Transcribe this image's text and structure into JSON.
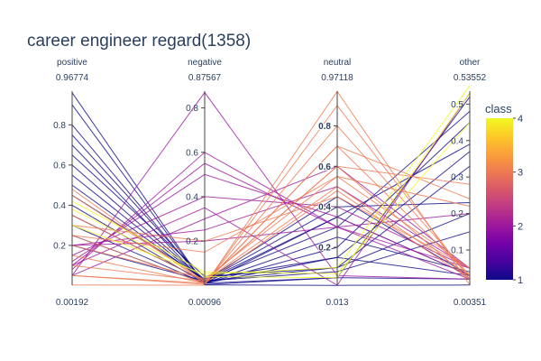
{
  "chart_data": {
    "type": "parallel_coordinates",
    "title": "career engineer regard(1358)",
    "dimensions": [
      {
        "name": "positive",
        "max": 0.96774,
        "min": 0.00192,
        "ticks": [
          0.2,
          0.4,
          0.6,
          0.8
        ]
      },
      {
        "name": "negative",
        "max": 0.87567,
        "min": 0.00096,
        "ticks": [
          0.2,
          0.4,
          0.6,
          0.8
        ]
      },
      {
        "name": "neutral",
        "max": 0.97118,
        "min": 0.013,
        "ticks": [
          0.2,
          0.4,
          0.6,
          0.8
        ]
      },
      {
        "name": "other",
        "max": 0.53552,
        "min": 0.00351,
        "ticks": [
          0.1,
          0.2,
          0.3,
          0.4,
          0.5
        ]
      }
    ],
    "colorbar": {
      "title": "class",
      "min": 1,
      "max": 4,
      "ticks": [
        1,
        2,
        3,
        4
      ]
    },
    "colorscale": [
      "#0d0887",
      "#46039f",
      "#7201a8",
      "#9c179e",
      "#bd3786",
      "#d8576b",
      "#ed7953",
      "#fb9f3a",
      "#fdca26",
      "#f0f921"
    ],
    "series_samples": [
      {
        "class": 1,
        "values": [
          0.96,
          0.002,
          0.012,
          0.004
        ]
      },
      {
        "class": 1,
        "values": [
          0.9,
          0.004,
          0.05,
          0.02
        ]
      },
      {
        "class": 1,
        "values": [
          0.8,
          0.01,
          0.15,
          0.03
        ]
      },
      {
        "class": 1,
        "values": [
          0.7,
          0.01,
          0.25,
          0.04
        ]
      },
      {
        "class": 1,
        "values": [
          0.6,
          0.02,
          0.35,
          0.03
        ]
      },
      {
        "class": 1,
        "values": [
          0.5,
          0.02,
          0.45,
          0.03
        ]
      },
      {
        "class": 1,
        "values": [
          0.4,
          0.01,
          0.05,
          0.52
        ]
      },
      {
        "class": 1,
        "values": [
          0.55,
          0.02,
          0.1,
          0.33
        ]
      },
      {
        "class": 1,
        "values": [
          0.3,
          0.01,
          0.2,
          0.45
        ]
      },
      {
        "class": 1,
        "values": [
          0.2,
          0.02,
          0.3,
          0.48
        ]
      },
      {
        "class": 1,
        "values": [
          0.45,
          0.03,
          0.15,
          0.37
        ]
      },
      {
        "class": 1,
        "values": [
          0.35,
          0.02,
          0.4,
          0.23
        ]
      },
      {
        "class": 1,
        "values": [
          0.65,
          0.04,
          0.1,
          0.2
        ]
      },
      {
        "class": 1,
        "values": [
          0.25,
          0.01,
          0.35,
          0.39
        ]
      },
      {
        "class": 1,
        "values": [
          0.75,
          0.02,
          0.08,
          0.15
        ]
      },
      {
        "class": 2,
        "values": [
          0.05,
          0.87,
          0.06,
          0.02
        ]
      },
      {
        "class": 2,
        "values": [
          0.08,
          0.6,
          0.3,
          0.02
        ]
      },
      {
        "class": 2,
        "values": [
          0.1,
          0.55,
          0.3,
          0.05
        ]
      },
      {
        "class": 2,
        "values": [
          0.12,
          0.5,
          0.35,
          0.03
        ]
      },
      {
        "class": 2,
        "values": [
          0.15,
          0.4,
          0.4,
          0.05
        ]
      },
      {
        "class": 2,
        "values": [
          0.05,
          0.3,
          0.6,
          0.05
        ]
      },
      {
        "class": 2,
        "values": [
          0.2,
          0.25,
          0.5,
          0.05
        ]
      },
      {
        "class": 2,
        "values": [
          0.1,
          0.35,
          0.013,
          0.53
        ]
      },
      {
        "class": 2,
        "values": [
          0.2,
          0.2,
          0.3,
          0.2
        ]
      },
      {
        "class": 3,
        "values": [
          0.003,
          0.001,
          0.97,
          0.004
        ]
      },
      {
        "class": 3,
        "values": [
          0.05,
          0.005,
          0.9,
          0.02
        ]
      },
      {
        "class": 3,
        "values": [
          0.15,
          0.01,
          0.8,
          0.03
        ]
      },
      {
        "class": 3,
        "values": [
          0.25,
          0.01,
          0.7,
          0.03
        ]
      },
      {
        "class": 3,
        "values": [
          0.35,
          0.02,
          0.6,
          0.02
        ]
      },
      {
        "class": 3,
        "values": [
          0.45,
          0.02,
          0.5,
          0.03
        ]
      },
      {
        "class": 3,
        "values": [
          0.48,
          0.01,
          0.48,
          0.02
        ]
      },
      {
        "class": 3,
        "values": [
          0.1,
          0.02,
          0.6,
          0.28
        ]
      },
      {
        "class": 3,
        "values": [
          0.05,
          0.01,
          0.7,
          0.24
        ]
      },
      {
        "class": 3,
        "values": [
          0.2,
          0.03,
          0.55,
          0.22
        ]
      },
      {
        "class": 3,
        "values": [
          0.3,
          0.2,
          0.45,
          0.05
        ]
      },
      {
        "class": 3,
        "values": [
          0.25,
          0.15,
          0.55,
          0.05
        ]
      },
      {
        "class": 4,
        "values": [
          0.42,
          0.06,
          0.07,
          0.45
        ]
      },
      {
        "class": 4,
        "values": [
          0.38,
          0.04,
          0.05,
          0.53
        ]
      },
      {
        "class": 4,
        "values": [
          0.3,
          0.05,
          0.1,
          0.55
        ]
      }
    ]
  }
}
